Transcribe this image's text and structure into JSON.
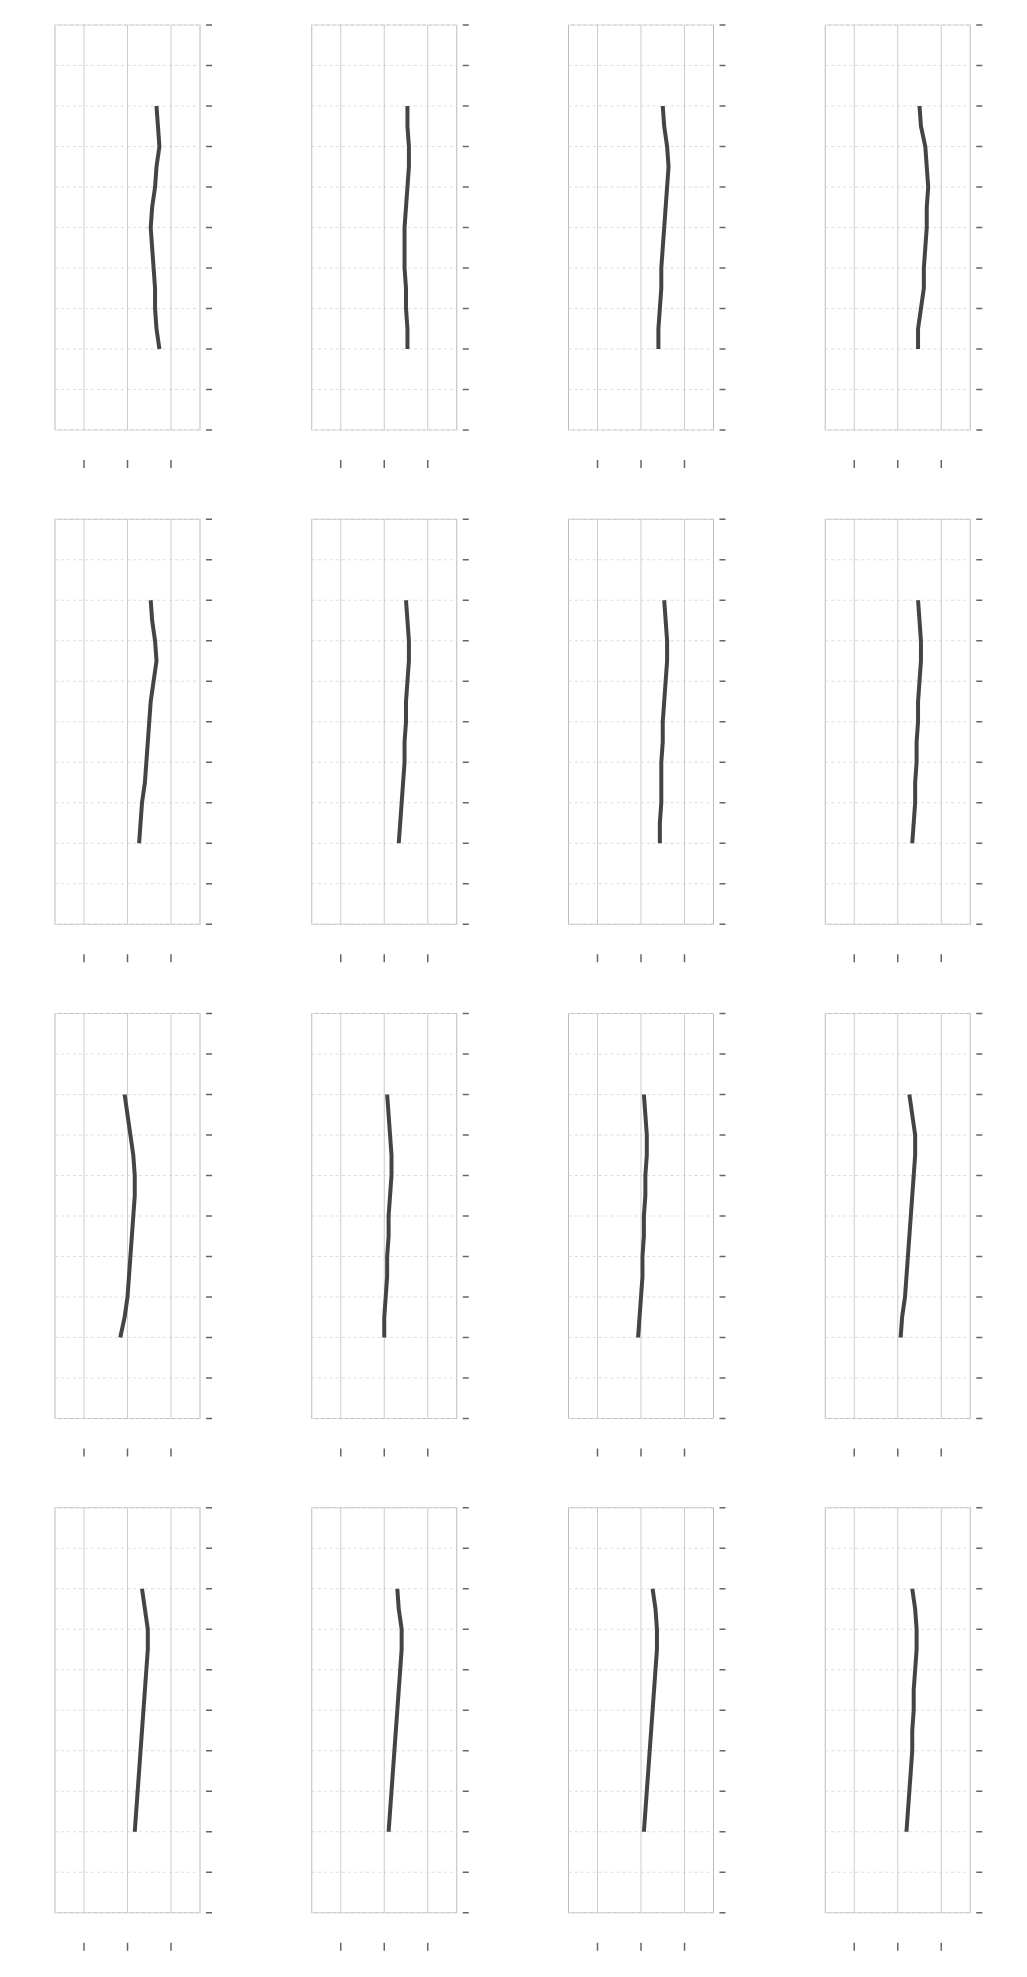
{
  "chart_data": [
    {
      "type": "line",
      "x": [
        2,
        2.5,
        3,
        3.5,
        4,
        4.5,
        5,
        5.5,
        6,
        6.5,
        7,
        7.5,
        8
      ],
      "values": [
        0.72,
        0.7,
        0.69,
        0.69,
        0.68,
        0.67,
        0.66,
        0.67,
        0.69,
        0.7,
        0.72,
        0.71,
        0.7
      ],
      "color": "#444444",
      "xlim": [
        0,
        10
      ],
      "ylim": [
        0,
        1
      ],
      "xticks": [
        0,
        1,
        2,
        3,
        4,
        5,
        6,
        7,
        8,
        9,
        10
      ],
      "yticks": [
        0.2,
        0.5,
        0.8
      ],
      "grid": true
    },
    {
      "type": "line",
      "x": [
        2,
        2.5,
        3,
        3.5,
        4,
        4.5,
        5,
        5.5,
        6,
        6.5,
        7,
        7.5,
        8
      ],
      "values": [
        0.66,
        0.66,
        0.65,
        0.65,
        0.64,
        0.64,
        0.64,
        0.65,
        0.66,
        0.67,
        0.67,
        0.66,
        0.66
      ],
      "color": "#444444",
      "xlim": [
        0,
        10
      ],
      "ylim": [
        0,
        1
      ],
      "xticks": [
        0,
        1,
        2,
        3,
        4,
        5,
        6,
        7,
        8,
        9,
        10
      ],
      "yticks": [
        0.2,
        0.5,
        0.8
      ],
      "grid": true
    },
    {
      "type": "line",
      "x": [
        2,
        2.5,
        3,
        3.5,
        4,
        4.5,
        5,
        5.5,
        6,
        6.5,
        7,
        7.5,
        8
      ],
      "values": [
        0.62,
        0.62,
        0.63,
        0.64,
        0.64,
        0.65,
        0.66,
        0.67,
        0.68,
        0.69,
        0.68,
        0.66,
        0.65
      ],
      "color": "#444444",
      "xlim": [
        0,
        10
      ],
      "ylim": [
        0,
        1
      ],
      "xticks": [
        0,
        1,
        2,
        3,
        4,
        5,
        6,
        7,
        8,
        9,
        10
      ],
      "yticks": [
        0.2,
        0.5,
        0.8
      ],
      "grid": true
    },
    {
      "type": "line",
      "x": [
        2,
        2.5,
        3,
        3.5,
        4,
        4.5,
        5,
        5.5,
        6,
        6.5,
        7,
        7.5,
        8
      ],
      "values": [
        0.64,
        0.64,
        0.66,
        0.68,
        0.68,
        0.69,
        0.7,
        0.7,
        0.71,
        0.7,
        0.69,
        0.66,
        0.65
      ],
      "color": "#444444",
      "xlim": [
        0,
        10
      ],
      "ylim": [
        0,
        1
      ],
      "xticks": [
        0,
        1,
        2,
        3,
        4,
        5,
        6,
        7,
        8,
        9,
        10
      ],
      "yticks": [
        0.2,
        0.5,
        0.8
      ],
      "grid": true
    },
    {
      "type": "line",
      "x": [
        2,
        2.5,
        3,
        3.5,
        4,
        4.5,
        5,
        5.5,
        6,
        6.5,
        7,
        7.5,
        8
      ],
      "values": [
        0.58,
        0.59,
        0.6,
        0.62,
        0.63,
        0.64,
        0.65,
        0.66,
        0.68,
        0.7,
        0.69,
        0.67,
        0.66
      ],
      "color": "#444444",
      "xlim": [
        0,
        10
      ],
      "ylim": [
        0,
        1
      ],
      "xticks": [
        0,
        1,
        2,
        3,
        4,
        5,
        6,
        7,
        8,
        9,
        10
      ],
      "yticks": [
        0.2,
        0.5,
        0.8
      ],
      "grid": true
    },
    {
      "type": "line",
      "x": [
        2,
        2.5,
        3,
        3.5,
        4,
        4.5,
        5,
        5.5,
        6,
        6.5,
        7,
        7.5,
        8
      ],
      "values": [
        0.6,
        0.61,
        0.62,
        0.63,
        0.64,
        0.64,
        0.65,
        0.65,
        0.66,
        0.67,
        0.67,
        0.66,
        0.65
      ],
      "color": "#444444",
      "xlim": [
        0,
        10
      ],
      "ylim": [
        0,
        1
      ],
      "xticks": [
        0,
        1,
        2,
        3,
        4,
        5,
        6,
        7,
        8,
        9,
        10
      ],
      "yticks": [
        0.2,
        0.5,
        0.8
      ],
      "grid": true
    },
    {
      "type": "line",
      "x": [
        2,
        2.5,
        3,
        3.5,
        4,
        4.5,
        5,
        5.5,
        6,
        6.5,
        7,
        7.5,
        8
      ],
      "values": [
        0.63,
        0.63,
        0.64,
        0.64,
        0.64,
        0.65,
        0.65,
        0.66,
        0.67,
        0.68,
        0.68,
        0.67,
        0.66
      ],
      "color": "#444444",
      "xlim": [
        0,
        10
      ],
      "ylim": [
        0,
        1
      ],
      "xticks": [
        0,
        1,
        2,
        3,
        4,
        5,
        6,
        7,
        8,
        9,
        10
      ],
      "yticks": [
        0.2,
        0.5,
        0.8
      ],
      "grid": true
    },
    {
      "type": "line",
      "x": [
        2,
        2.5,
        3,
        3.5,
        4,
        4.5,
        5,
        5.5,
        6,
        6.5,
        7,
        7.5,
        8
      ],
      "values": [
        0.6,
        0.61,
        0.62,
        0.62,
        0.63,
        0.63,
        0.64,
        0.64,
        0.65,
        0.66,
        0.66,
        0.65,
        0.64
      ],
      "color": "#444444",
      "xlim": [
        0,
        10
      ],
      "ylim": [
        0,
        1
      ],
      "xticks": [
        0,
        1,
        2,
        3,
        4,
        5,
        6,
        7,
        8,
        9,
        10
      ],
      "yticks": [
        0.2,
        0.5,
        0.8
      ],
      "grid": true
    },
    {
      "type": "line",
      "x": [
        2,
        2.5,
        3,
        3.5,
        4,
        4.5,
        5,
        5.5,
        6,
        6.5,
        7,
        7.5,
        8
      ],
      "values": [
        0.45,
        0.48,
        0.5,
        0.51,
        0.52,
        0.53,
        0.54,
        0.55,
        0.55,
        0.54,
        0.52,
        0.5,
        0.48
      ],
      "color": "#444444",
      "xlim": [
        0,
        10
      ],
      "ylim": [
        0,
        1
      ],
      "xticks": [
        0,
        1,
        2,
        3,
        4,
        5,
        6,
        7,
        8,
        9,
        10
      ],
      "yticks": [
        0.2,
        0.5,
        0.8
      ],
      "grid": true
    },
    {
      "type": "line",
      "x": [
        2,
        2.5,
        3,
        3.5,
        4,
        4.5,
        5,
        5.5,
        6,
        6.5,
        7,
        7.5,
        8
      ],
      "values": [
        0.5,
        0.5,
        0.51,
        0.52,
        0.52,
        0.53,
        0.53,
        0.54,
        0.55,
        0.55,
        0.54,
        0.53,
        0.52
      ],
      "color": "#444444",
      "xlim": [
        0,
        10
      ],
      "ylim": [
        0,
        1
      ],
      "xticks": [
        0,
        1,
        2,
        3,
        4,
        5,
        6,
        7,
        8,
        9,
        10
      ],
      "yticks": [
        0.2,
        0.5,
        0.8
      ],
      "grid": true
    },
    {
      "type": "line",
      "x": [
        2,
        2.5,
        3,
        3.5,
        4,
        4.5,
        5,
        5.5,
        6,
        6.5,
        7,
        7.5,
        8
      ],
      "values": [
        0.48,
        0.49,
        0.5,
        0.51,
        0.51,
        0.52,
        0.52,
        0.53,
        0.53,
        0.54,
        0.54,
        0.53,
        0.52
      ],
      "color": "#444444",
      "xlim": [
        0,
        10
      ],
      "ylim": [
        0,
        1
      ],
      "xticks": [
        0,
        1,
        2,
        3,
        4,
        5,
        6,
        7,
        8,
        9,
        10
      ],
      "yticks": [
        0.2,
        0.5,
        0.8
      ],
      "grid": true
    },
    {
      "type": "line",
      "x": [
        2,
        2.5,
        3,
        3.5,
        4,
        4.5,
        5,
        5.5,
        6,
        6.5,
        7,
        7.5,
        8
      ],
      "values": [
        0.52,
        0.53,
        0.55,
        0.56,
        0.57,
        0.58,
        0.59,
        0.6,
        0.61,
        0.62,
        0.62,
        0.6,
        0.58
      ],
      "color": "#444444",
      "xlim": [
        0,
        10
      ],
      "ylim": [
        0,
        1
      ],
      "xticks": [
        0,
        1,
        2,
        3,
        4,
        5,
        6,
        7,
        8,
        9,
        10
      ],
      "yticks": [
        0.2,
        0.5,
        0.8
      ],
      "grid": true
    },
    {
      "type": "line",
      "x": [
        2,
        2.5,
        3,
        3.5,
        4,
        4.5,
        5,
        5.5,
        6,
        6.5,
        7,
        7.5,
        8
      ],
      "values": [
        0.55,
        0.56,
        0.57,
        0.58,
        0.59,
        0.6,
        0.61,
        0.62,
        0.63,
        0.64,
        0.64,
        0.62,
        0.6
      ],
      "color": "#444444",
      "xlim": [
        0,
        10
      ],
      "ylim": [
        0,
        1
      ],
      "xticks": [
        0,
        1,
        2,
        3,
        4,
        5,
        6,
        7,
        8,
        9,
        10
      ],
      "yticks": [
        0.2,
        0.5,
        0.8
      ],
      "grid": true
    },
    {
      "type": "line",
      "x": [
        2,
        2.5,
        3,
        3.5,
        4,
        4.5,
        5,
        5.5,
        6,
        6.5,
        7,
        7.5,
        8
      ],
      "values": [
        0.53,
        0.54,
        0.55,
        0.56,
        0.57,
        0.58,
        0.59,
        0.6,
        0.61,
        0.62,
        0.62,
        0.6,
        0.59
      ],
      "color": "#444444",
      "xlim": [
        0,
        10
      ],
      "ylim": [
        0,
        1
      ],
      "xticks": [
        0,
        1,
        2,
        3,
        4,
        5,
        6,
        7,
        8,
        9,
        10
      ],
      "yticks": [
        0.2,
        0.5,
        0.8
      ],
      "grid": true
    },
    {
      "type": "line",
      "x": [
        2,
        2.5,
        3,
        3.5,
        4,
        4.5,
        5,
        5.5,
        6,
        6.5,
        7,
        7.5,
        8
      ],
      "values": [
        0.52,
        0.53,
        0.54,
        0.55,
        0.56,
        0.57,
        0.58,
        0.59,
        0.6,
        0.61,
        0.61,
        0.6,
        0.58
      ],
      "color": "#444444",
      "xlim": [
        0,
        10
      ],
      "ylim": [
        0,
        1
      ],
      "xticks": [
        0,
        1,
        2,
        3,
        4,
        5,
        6,
        7,
        8,
        9,
        10
      ],
      "yticks": [
        0.2,
        0.5,
        0.8
      ],
      "grid": true
    },
    {
      "type": "line",
      "x": [
        2,
        2.5,
        3,
        3.5,
        4,
        4.5,
        5,
        5.5,
        6,
        6.5,
        7,
        7.5,
        8
      ],
      "values": [
        0.56,
        0.57,
        0.58,
        0.59,
        0.6,
        0.6,
        0.61,
        0.61,
        0.62,
        0.63,
        0.63,
        0.62,
        0.6
      ],
      "color": "#444444",
      "xlim": [
        0,
        10
      ],
      "ylim": [
        0,
        1
      ],
      "xticks": [
        0,
        1,
        2,
        3,
        4,
        5,
        6,
        7,
        8,
        9,
        10
      ],
      "yticks": [
        0.2,
        0.5,
        0.8
      ],
      "grid": true
    }
  ]
}
